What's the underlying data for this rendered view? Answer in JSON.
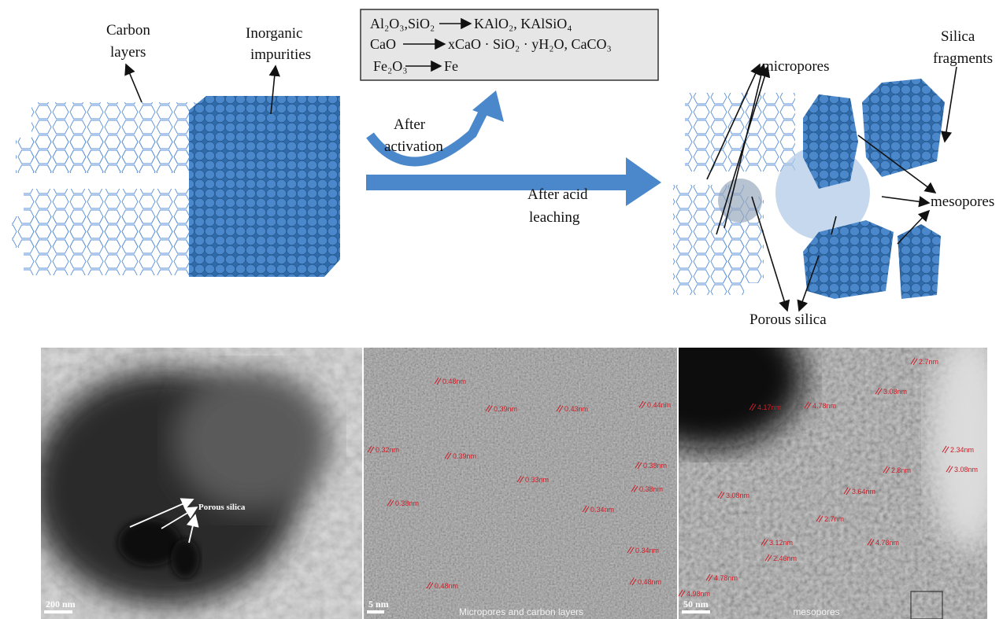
{
  "top": {
    "carbon_layers": [
      "Carbon",
      "layers"
    ],
    "inorganic_impurities": [
      "Inorganic",
      "impurities"
    ],
    "reactions": [
      {
        "reactants": "Al₂O₃,SiO₂",
        "products": "KAlO₂, KAlSiO₄"
      },
      {
        "reactants": "CaO",
        "products": "xCaO · SiO₂ · yH₂O, CaCO₃"
      },
      {
        "reactants": "Fe₂O₃",
        "products": "Fe"
      }
    ],
    "after_activation": [
      "After",
      "activation"
    ],
    "after_acid_leaching": [
      "After acid",
      "leaching"
    ],
    "micropores": "micropores",
    "silica_fragments": [
      "Silica",
      "fragments"
    ],
    "mesopores": "mesopores",
    "porous_silica": "Porous silica"
  },
  "panels": [
    {
      "annotation": "Porous silica",
      "scale_bar": "200 nm"
    },
    {
      "scale_bar": "5 nm",
      "caption": "Micropores and carbon layers",
      "measurements": [
        "0.48nm",
        "0.39nm",
        "0.32nm",
        "0.39nm",
        "0.43nm",
        "0.44nm",
        "0.38nm",
        "0.33nm",
        "0.34nm",
        "0.38nm",
        "0.38nm",
        "0.34nm",
        "0.48nm",
        "0.48nm"
      ]
    },
    {
      "scale_bar": "50 nm",
      "caption": "mesopores",
      "measurements": [
        "2.7nm",
        "4.17nm",
        "4.78nm",
        "3.08nm",
        "2.34nm",
        "2.8nm",
        "3.08nm",
        "3.08nm",
        "3.64nm",
        "2.7nm",
        "4.78nm",
        "3.12nm",
        "4.78nm",
        "2.46nm",
        "4.98nm"
      ]
    }
  ]
}
